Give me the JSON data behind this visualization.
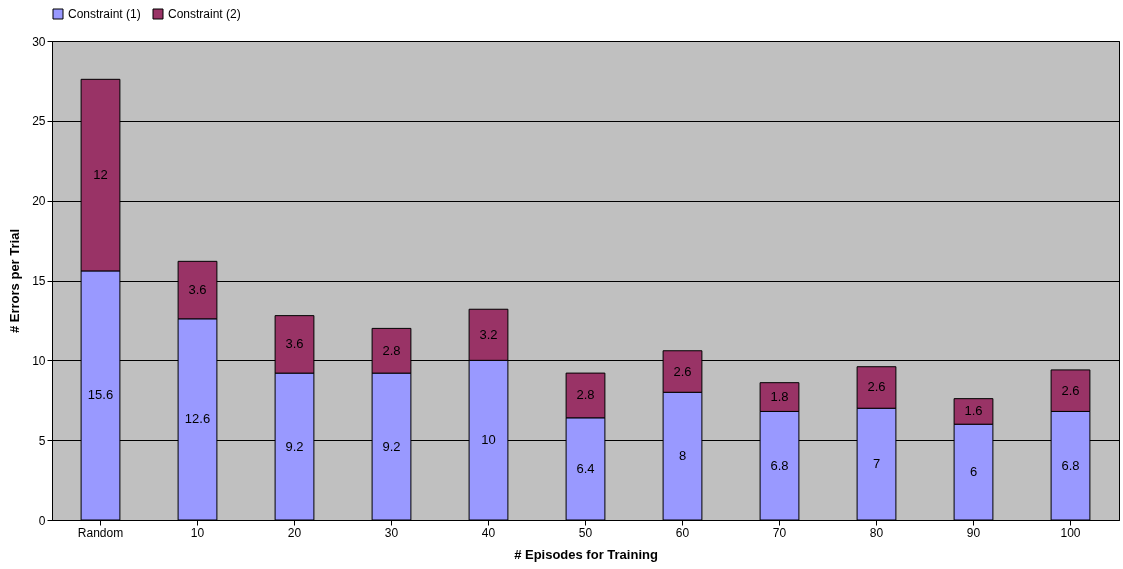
{
  "chart_data": {
    "type": "bar",
    "stacked": true,
    "xlabel": "# Episodes for Training",
    "ylabel": "# Errors per Trial",
    "categories": [
      "Random",
      "10",
      "20",
      "30",
      "40",
      "50",
      "60",
      "70",
      "80",
      "90",
      "100"
    ],
    "series": [
      {
        "name": "Constraint (1)",
        "color": "#9999ff",
        "values": [
          15.6,
          12.6,
          9.2,
          9.2,
          10,
          6.4,
          8,
          6.8,
          7,
          6,
          6.8
        ]
      },
      {
        "name": "Constraint (2)",
        "color": "#993366",
        "values": [
          12,
          3.6,
          3.6,
          2.8,
          3.2,
          2.8,
          2.6,
          1.8,
          2.6,
          1.6,
          2.6
        ]
      }
    ],
    "ylim": [
      0,
      30
    ],
    "yticks": [
      0,
      5,
      10,
      15,
      20,
      25,
      30
    ],
    "grid": "y",
    "legend": "top",
    "data_labels": true
  }
}
